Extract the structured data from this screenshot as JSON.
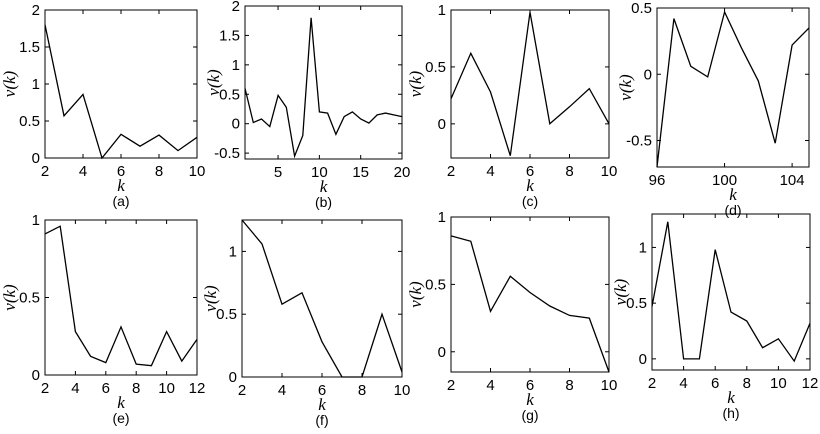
{
  "chart_data": [
    {
      "type": "line",
      "panel_label": "(a)",
      "xlabel": "k",
      "ylabel": "v(k)",
      "xlim": [
        2,
        10
      ],
      "ylim": [
        0,
        2
      ],
      "xticks": [
        2,
        4,
        6,
        8,
        10
      ],
      "xtick_labels": [
        "2",
        "4",
        "6",
        "8",
        "10"
      ],
      "yticks": [
        0,
        0.5,
        1,
        1.5,
        2
      ],
      "ytick_labels": [
        "0",
        "0.5",
        "1",
        "1.5",
        "2"
      ],
      "x": [
        2,
        3,
        4,
        5,
        6,
        7,
        8,
        9,
        10
      ],
      "y": [
        1.8,
        0.57,
        0.86,
        0.0,
        0.32,
        0.16,
        0.31,
        0.1,
        0.28
      ]
    },
    {
      "type": "line",
      "panel_label": "(b)",
      "xlabel": "k",
      "ylabel": "v(k)",
      "xlim": [
        1,
        20
      ],
      "ylim": [
        -0.6,
        2
      ],
      "xticks": [
        5,
        10,
        15,
        20
      ],
      "xtick_labels": [
        "5",
        "10",
        "15",
        "20"
      ],
      "yticks": [
        -0.5,
        0,
        0.5,
        1,
        1.5,
        2
      ],
      "ytick_labels": [
        "-0.5",
        "0",
        "0.5",
        "1",
        "1.5",
        "2"
      ],
      "x": [
        1,
        2,
        3,
        4,
        5,
        6,
        7,
        8,
        9,
        10,
        11,
        12,
        13,
        14,
        15,
        16,
        17,
        18,
        19,
        20
      ],
      "y": [
        0.6,
        0.02,
        0.08,
        -0.05,
        0.48,
        0.28,
        -0.55,
        -0.2,
        1.8,
        0.2,
        0.18,
        -0.18,
        0.12,
        0.2,
        0.08,
        0.01,
        0.15,
        0.18,
        0.15,
        0.12
      ]
    },
    {
      "type": "line",
      "panel_label": "(c)",
      "xlabel": "k",
      "ylabel": "v(k)",
      "xlim": [
        2,
        10
      ],
      "ylim": [
        -0.3,
        1
      ],
      "xticks": [
        2,
        4,
        6,
        8,
        10
      ],
      "xtick_labels": [
        "2",
        "4",
        "6",
        "8",
        "10"
      ],
      "yticks": [
        0,
        0.5,
        1
      ],
      "ytick_labels": [
        "0",
        "0.5",
        "1"
      ],
      "x": [
        2,
        3,
        4,
        5,
        6,
        7,
        8,
        9,
        10
      ],
      "y": [
        0.22,
        0.62,
        0.28,
        -0.28,
        0.98,
        0.0,
        0.15,
        0.31,
        0.0
      ]
    },
    {
      "type": "line",
      "panel_label": "(d)",
      "xlabel": "k",
      "ylabel": "v(k)",
      "xlim": [
        96,
        105
      ],
      "ylim": [
        -0.7,
        0.5
      ],
      "xticks": [
        96,
        100,
        104
      ],
      "xtick_labels": [
        "96",
        "100",
        "104"
      ],
      "yticks": [
        -0.5,
        0,
        0.5
      ],
      "ytick_labels": [
        "-0.5",
        "0",
        "0.5"
      ],
      "x": [
        96,
        97,
        98,
        99,
        100,
        101,
        102,
        103,
        104,
        105
      ],
      "y": [
        -0.7,
        0.42,
        0.06,
        -0.02,
        0.47,
        0.2,
        -0.05,
        -0.52,
        0.22,
        0.35
      ]
    },
    {
      "type": "line",
      "panel_label": "(e)",
      "xlabel": "k",
      "ylabel": "v(k)",
      "xlim": [
        2,
        12
      ],
      "ylim": [
        0,
        1
      ],
      "xticks": [
        2,
        4,
        6,
        8,
        10,
        12
      ],
      "xtick_labels": [
        "2",
        "4",
        "6",
        "8",
        "10",
        "12"
      ],
      "yticks": [
        0,
        0.5,
        1
      ],
      "ytick_labels": [
        "0",
        "0.5",
        "1"
      ],
      "x": [
        2,
        3,
        4,
        5,
        6,
        7,
        8,
        9,
        10,
        11,
        12
      ],
      "y": [
        0.91,
        0.96,
        0.28,
        0.12,
        0.08,
        0.31,
        0.07,
        0.06,
        0.28,
        0.09,
        0.23
      ]
    },
    {
      "type": "line",
      "panel_label": "(f)",
      "xlabel": "k",
      "ylabel": "v(k)",
      "xlim": [
        2,
        10
      ],
      "ylim": [
        0,
        1.25
      ],
      "xticks": [
        2,
        4,
        6,
        8,
        10
      ],
      "xtick_labels": [
        "2",
        "4",
        "6",
        "8",
        "10"
      ],
      "yticks": [
        0,
        0.5,
        1
      ],
      "ytick_labels": [
        "0",
        "0.5",
        "1"
      ],
      "x": [
        2,
        3,
        4,
        5,
        6,
        7,
        8,
        9,
        10
      ],
      "y": [
        1.25,
        1.06,
        0.58,
        0.67,
        0.28,
        0.0,
        0.0,
        0.5,
        0.04
      ]
    },
    {
      "type": "line",
      "panel_label": "(g)",
      "xlabel": "k",
      "ylabel": "v(k)",
      "xlim": [
        2,
        10
      ],
      "ylim": [
        -0.15,
        1
      ],
      "xticks": [
        2,
        4,
        6,
        8,
        10
      ],
      "xtick_labels": [
        "2",
        "4",
        "6",
        "8",
        "10"
      ],
      "yticks": [
        0,
        0.5,
        1
      ],
      "ytick_labels": [
        "0",
        "0.5",
        "1"
      ],
      "x": [
        2,
        3,
        4,
        5,
        6,
        7,
        8,
        9,
        10
      ],
      "y": [
        0.86,
        0.82,
        0.3,
        0.56,
        0.44,
        0.34,
        0.27,
        0.25,
        -0.15
      ]
    },
    {
      "type": "line",
      "panel_label": "(h)",
      "xlabel": "k",
      "ylabel": "v(k)",
      "xlim": [
        2,
        12
      ],
      "ylim": [
        -0.1,
        1.3
      ],
      "xticks": [
        2,
        4,
        6,
        8,
        10,
        12
      ],
      "xtick_labels": [
        "2",
        "4",
        "6",
        "8",
        "10",
        "12"
      ],
      "yticks": [
        0,
        0.5,
        1
      ],
      "ytick_labels": [
        "0",
        "0.5",
        "1"
      ],
      "x": [
        2,
        3,
        4,
        5,
        6,
        7,
        8,
        9,
        10,
        11,
        12
      ],
      "y": [
        0.47,
        1.23,
        0.0,
        0.0,
        0.98,
        0.42,
        0.34,
        0.1,
        0.18,
        -0.02,
        0.32
      ]
    }
  ]
}
